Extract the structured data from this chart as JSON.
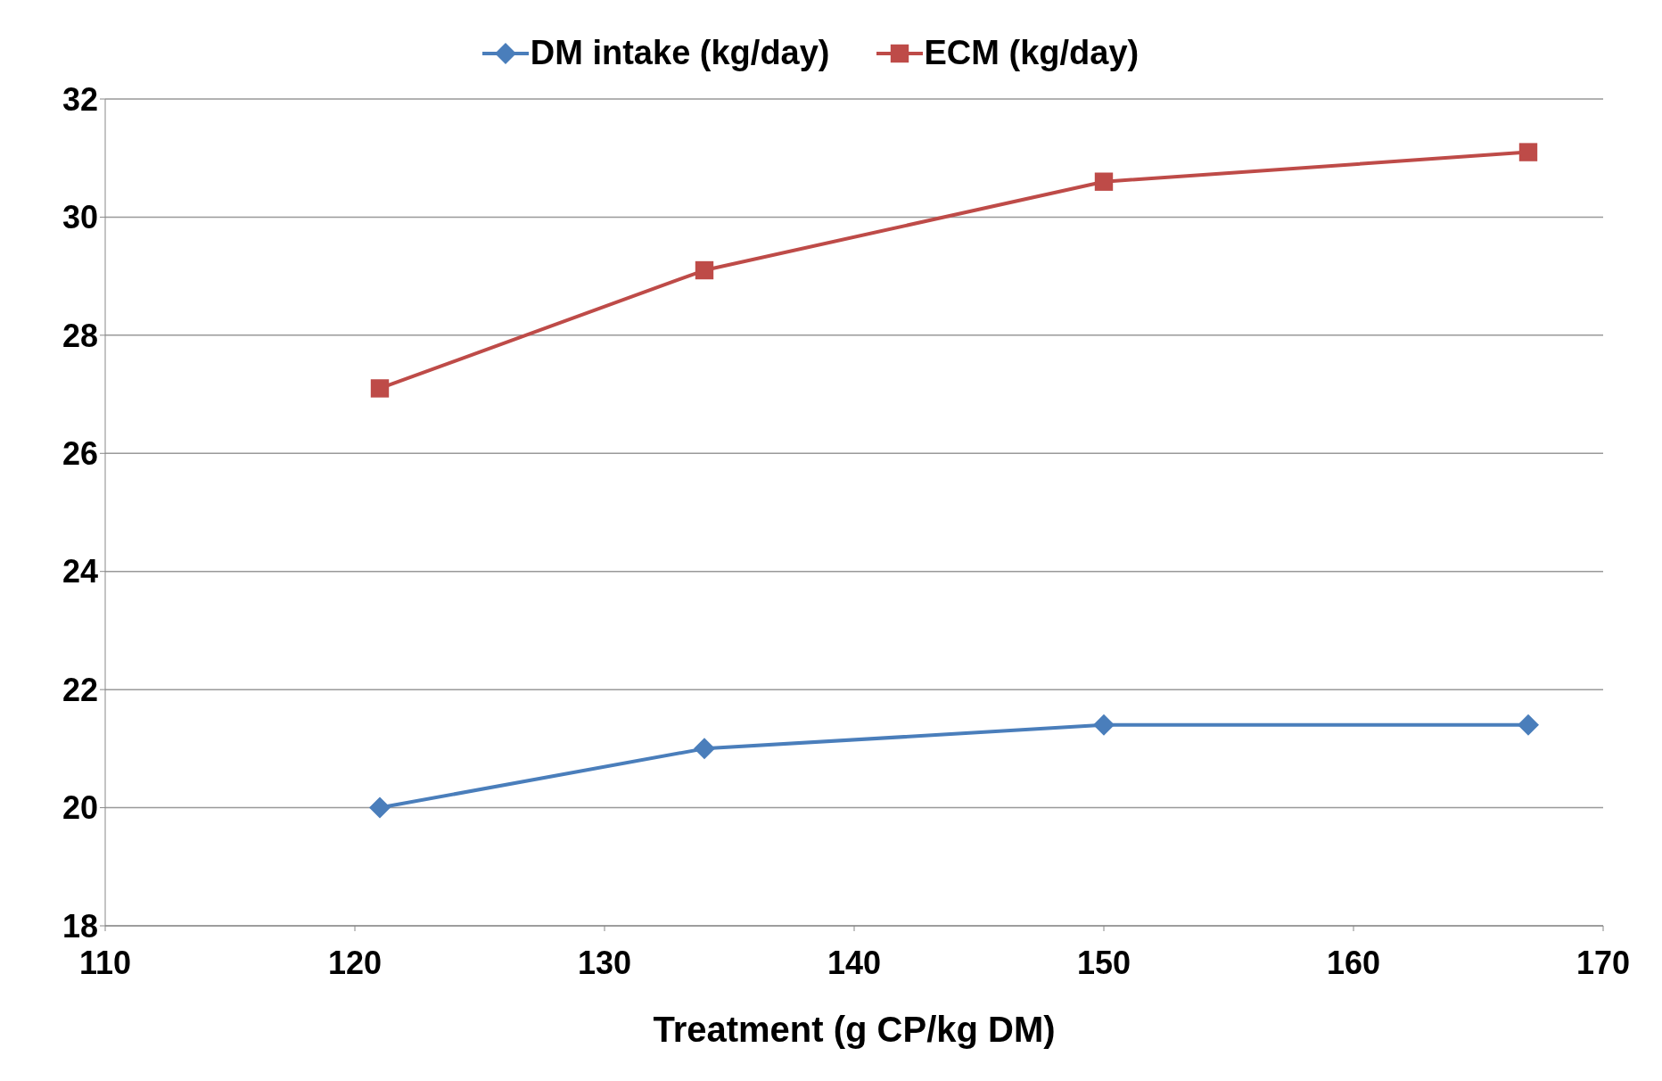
{
  "chart_data": {
    "type": "line",
    "xlabel": "Treatment (g CP/kg DM)",
    "x": [
      121,
      134,
      150,
      167
    ],
    "xlim": [
      110,
      170
    ],
    "xticks": [
      110,
      120,
      130,
      140,
      150,
      160,
      170
    ],
    "ylim": [
      18,
      32
    ],
    "yticks": [
      18,
      20,
      22,
      24,
      26,
      28,
      30,
      32
    ],
    "grid": "y",
    "legend": "top",
    "series": [
      {
        "name": "DM intake (kg/day)",
        "color": "#4a7ebb",
        "marker": "diamond",
        "values": [
          20,
          21,
          21.4,
          21.4
        ]
      },
      {
        "name": "ECM (kg/day)",
        "color": "#be4b48",
        "marker": "square",
        "values": [
          27.1,
          29.1,
          30.6,
          31.1
        ]
      }
    ]
  }
}
